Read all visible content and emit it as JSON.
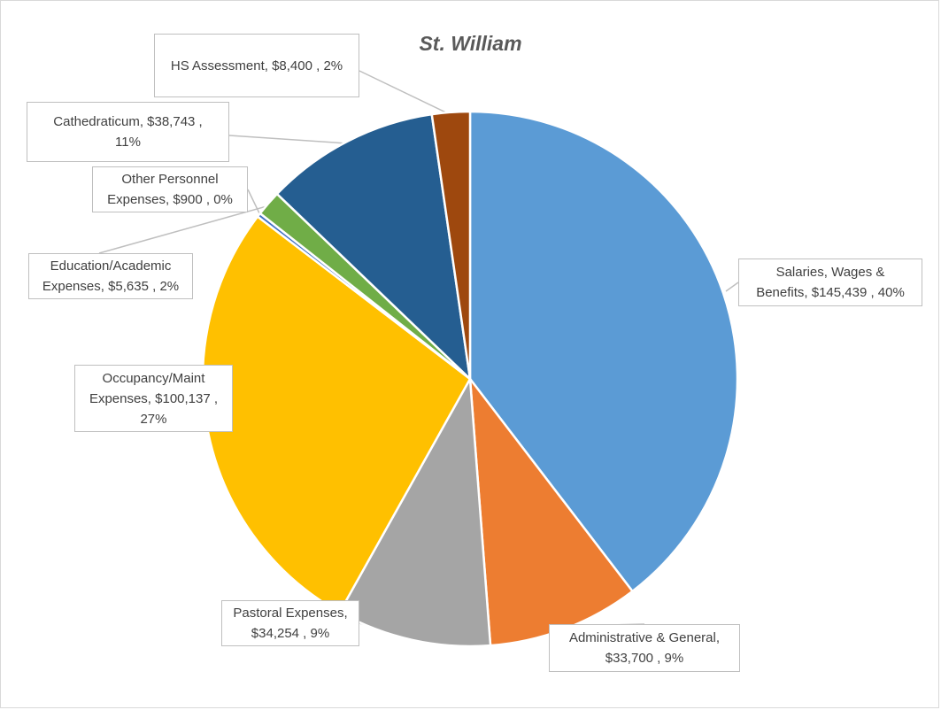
{
  "chart_data": {
    "type": "pie",
    "title": "St. William",
    "start_angle_deg": 0,
    "direction": "clockwise",
    "slices": [
      {
        "name": "Salaries, Wages & Benefits",
        "value": 145439,
        "percent": 40,
        "label": "Salaries, Wages &\nBenefits,  $145,439 , 40%",
        "color": "#5b9bd5"
      },
      {
        "name": "Administrative & General",
        "value": 33700,
        "percent": 9,
        "label": "Administrative & General,\n$33,700 , 9%",
        "color": "#ed7d31"
      },
      {
        "name": "Pastoral Expenses",
        "value": 34254,
        "percent": 9,
        "label": "Pastoral Expenses,\n$34,254 , 9%",
        "color": "#a5a5a5"
      },
      {
        "name": "Occupancy/Maint Expenses",
        "value": 100137,
        "percent": 27,
        "label": "Occupancy/Maint\nExpenses,  $100,137 ,\n27%",
        "color": "#ffc000"
      },
      {
        "name": "Other Personnel Expenses",
        "value": 900,
        "percent": 0,
        "label": "Other Personnel\nExpenses,  $900 , 0%",
        "color": "#4472c4"
      },
      {
        "name": "Education/Academic Expenses",
        "value": 5635,
        "percent": 2,
        "label": "Education/Academic\nExpenses,  $5,635 , 2%",
        "color": "#70ad47"
      },
      {
        "name": "Cathedraticum",
        "value": 38743,
        "percent": 11,
        "label": "Cathedraticum,  $38,743 ,\n11%",
        "color": "#255e91"
      },
      {
        "name": "HS Assessment",
        "value": 8400,
        "percent": 2,
        "label": "HS Assessment,  $8,400 , 2%",
        "color": "#9e480e"
      }
    ]
  }
}
